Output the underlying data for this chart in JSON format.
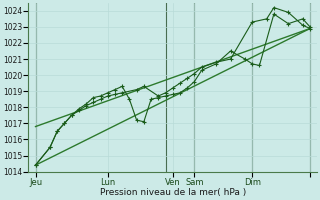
{
  "bg_color": "#cceae7",
  "grid_color_minor": "#b8dbd8",
  "grid_color_major": "#aacfcc",
  "line_color_dark": "#1a5c1a",
  "line_color_mid": "#2d7a2d",
  "xlabel": "Pression niveau de la mer( hPa )",
  "ylim": [
    1014,
    1024.5
  ],
  "yticks": [
    1014,
    1015,
    1016,
    1017,
    1018,
    1019,
    1020,
    1021,
    1022,
    1023,
    1024
  ],
  "xlim": [
    0,
    20
  ],
  "xtick_positions": [
    0.5,
    5.5,
    10.0,
    11.5,
    15.5,
    19.5
  ],
  "xtick_labels": [
    "Jeu",
    "Lun",
    "Ven",
    "Sam",
    "Dim",
    ""
  ],
  "vline_positions": [
    0.5,
    9.5,
    11.5,
    15.5,
    19.5
  ],
  "series1_x": [
    0.5,
    1.5,
    2.0,
    2.5,
    3.0,
    3.5,
    4.0,
    4.5,
    5.0,
    5.5,
    6.0,
    6.5,
    7.5,
    8.0,
    9.0,
    9.5,
    10.0,
    10.5,
    11.0,
    11.5,
    12.0,
    13.0,
    14.0,
    15.5,
    16.5,
    17.0,
    18.0,
    19.0,
    19.5
  ],
  "series1_y": [
    1014.4,
    1015.5,
    1016.5,
    1017.0,
    1017.5,
    1017.8,
    1018.1,
    1018.3,
    1018.5,
    1018.7,
    1018.8,
    1018.9,
    1019.1,
    1019.3,
    1018.7,
    1018.9,
    1019.2,
    1019.5,
    1019.8,
    1020.1,
    1020.5,
    1020.8,
    1021.0,
    1023.3,
    1023.5,
    1024.2,
    1023.9,
    1023.1,
    1022.9
  ],
  "series2_x": [
    0.5,
    1.5,
    2.0,
    2.5,
    3.0,
    3.5,
    4.0,
    4.5,
    5.0,
    5.5,
    6.0,
    6.5,
    7.0,
    7.5,
    8.0,
    8.5,
    9.0,
    9.5,
    10.0,
    10.5,
    11.0,
    11.5,
    12.0,
    13.0,
    14.0,
    15.0,
    15.5,
    16.0,
    17.0,
    18.0,
    19.0,
    19.5
  ],
  "series2_y": [
    1014.4,
    1015.5,
    1016.5,
    1017.0,
    1017.5,
    1017.9,
    1018.2,
    1018.6,
    1018.7,
    1018.9,
    1019.1,
    1019.3,
    1018.5,
    1017.2,
    1017.1,
    1018.5,
    1018.6,
    1018.7,
    1018.8,
    1018.9,
    1019.2,
    1019.6,
    1020.3,
    1020.7,
    1021.5,
    1021.0,
    1020.7,
    1020.6,
    1023.8,
    1023.2,
    1023.5,
    1023.0
  ],
  "trend1_x": [
    0.5,
    19.5
  ],
  "trend1_y": [
    1016.8,
    1022.9
  ],
  "trend2_x": [
    0.5,
    19.5
  ],
  "trend2_y": [
    1014.4,
    1022.9
  ]
}
